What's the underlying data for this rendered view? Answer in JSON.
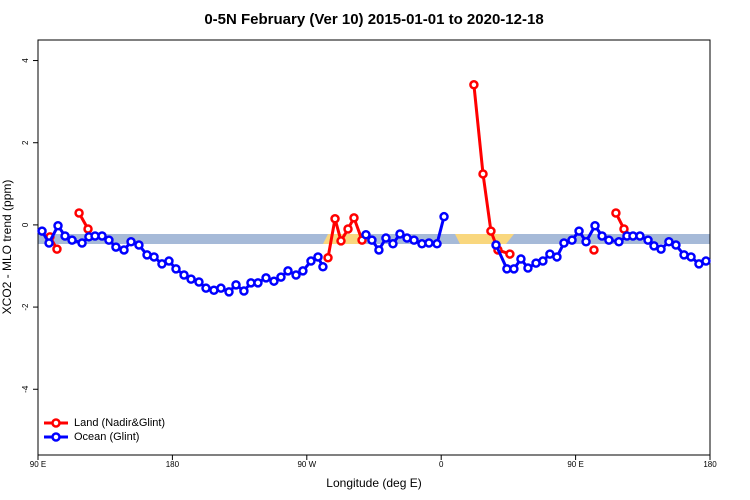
{
  "chart_data": {
    "type": "line",
    "title": "0-5N February (Ver 10)   2015-01-01 to 2020-12-18",
    "xlabel": "Longitude (deg E)",
    "ylabel": "XCO2 - MLO trend (ppm)",
    "xlim": [
      90,
      540
    ],
    "ylim": [
      -5.6,
      4.5
    ],
    "xticks": [
      {
        "value": 90,
        "label": "90 E"
      },
      180,
      {
        "value": 270,
        "label": "90 W"
      },
      {
        "value": 360,
        "label": "0"
      },
      {
        "value": 450,
        "label": "90 E"
      },
      {
        "value": 540,
        "label": "180"
      }
    ],
    "yticks": [
      -4,
      -2,
      0,
      2,
      4
    ],
    "legend": "bottomleft",
    "series": [
      {
        "name": "Land (Nadir&Glint)",
        "color": "#ff0000",
        "x": [
          98,
          102.7,
          null,
          117.5,
          123.5,
          null,
          284.2,
          288.9,
          292.9,
          297.6,
          301.6,
          307,
          null,
          381.9,
          388,
          393.3,
          398,
          406,
          null,
          462.3,
          null,
          477,
          482.4
        ],
        "values": [
          -0.29,
          -0.59,
          null,
          0.29,
          -0.1,
          null,
          -0.8,
          0.15,
          -0.39,
          -0.1,
          0.17,
          -0.37,
          null,
          3.41,
          1.24,
          -0.15,
          -0.61,
          -0.71,
          null,
          -0.61,
          null,
          0.29,
          -0.1
        ]
      },
      {
        "name": "Ocean (Glint)",
        "color": "#0000ff",
        "x": [
          92.7,
          97.4,
          103.4,
          108.1,
          112.8,
          119.5,
          124.1,
          128.2,
          132.9,
          137.5,
          142.2,
          147.6,
          152.3,
          157.6,
          163,
          167.7,
          173,
          177.7,
          182.4,
          187.8,
          192.5,
          197.8,
          202.5,
          207.8,
          212.5,
          217.9,
          222.6,
          227.9,
          232.6,
          237.3,
          242.7,
          248,
          252.7,
          257.4,
          262.8,
          267.4,
          272.8,
          277.5,
          280.8,
          null,
          309.6,
          313.6,
          318.3,
          323,
          327.7,
          332.4,
          337.1,
          341.8,
          347.1,
          351.8,
          357.2,
          361.9,
          null,
          396.7,
          404,
          408.7,
          413.4,
          418.1,
          423.5,
          428.1,
          432.8,
          437.5,
          442.2,
          447.6,
          452.3,
          457,
          463,
          467.7,
          472.3,
          479,
          484.4,
          488.4,
          493.1,
          498.5,
          502.5,
          507.2,
          512.5,
          517.2,
          522.6,
          527.3,
          532.6,
          537.3
        ],
        "values": [
          -0.15,
          -0.44,
          -0.02,
          -0.27,
          -0.37,
          -0.44,
          -0.29,
          -0.27,
          -0.27,
          -0.37,
          -0.54,
          -0.61,
          -0.41,
          -0.49,
          -0.73,
          -0.78,
          -0.95,
          -0.88,
          -1.07,
          -1.22,
          -1.32,
          -1.39,
          -1.54,
          -1.59,
          -1.54,
          -1.63,
          -1.46,
          -1.61,
          -1.41,
          -1.41,
          -1.29,
          -1.37,
          -1.27,
          -1.12,
          -1.22,
          -1.12,
          -0.88,
          -0.78,
          -1.02,
          null,
          -0.24,
          -0.37,
          -0.61,
          -0.32,
          -0.46,
          -0.22,
          -0.32,
          -0.37,
          -0.46,
          -0.44,
          -0.46,
          0.2,
          null,
          -0.49,
          -1.07,
          -1.07,
          -0.83,
          -1.05,
          -0.93,
          -0.88,
          -0.71,
          -0.78,
          -0.44,
          -0.37,
          -0.15,
          -0.41,
          -0.02,
          -0.27,
          -0.37,
          -0.41,
          -0.27,
          -0.27,
          -0.27,
          -0.37,
          -0.51,
          -0.59,
          -0.41,
          -0.49,
          -0.73,
          -0.78,
          -0.95,
          -0.88
        ]
      }
    ]
  }
}
